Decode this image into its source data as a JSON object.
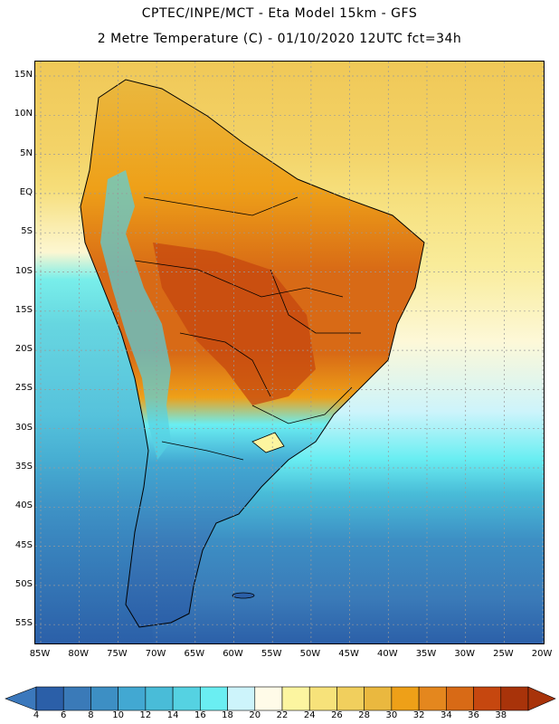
{
  "header": {
    "title_line1": "CPTEC/INPE/MCT -  Eta Model 15km - GFS",
    "title_line2": "2 Metre Temperature (C) - 01/10/2020 12UTC fct=34h"
  },
  "map": {
    "lat_labels": [
      "15N",
      "10N",
      "5N",
      "EQ",
      "5S",
      "10S",
      "15S",
      "20S",
      "25S",
      "30S",
      "35S",
      "40S",
      "45S",
      "50S",
      "55S"
    ],
    "lon_labels": [
      "85W",
      "80W",
      "75W",
      "70W",
      "65W",
      "60W",
      "55W",
      "50W",
      "45W",
      "40W",
      "35W",
      "30W",
      "25W",
      "20W"
    ],
    "gridlines": true
  },
  "colorbar": {
    "labels": [
      "4",
      "6",
      "8",
      "10",
      "12",
      "14",
      "16",
      "18",
      "20",
      "22",
      "24",
      "26",
      "28",
      "30",
      "32",
      "34",
      "36",
      "38"
    ],
    "colors": [
      "#2b5fa8",
      "#3a7ab8",
      "#3d8fc4",
      "#42a8d2",
      "#49bcd8",
      "#55d2e2",
      "#6aeef2",
      "#cdf4fb",
      "#fffbe8",
      "#fcf5a0",
      "#f7e27a",
      "#f1cf5d",
      "#eab83f",
      "#eea018",
      "#e4871e",
      "#d86a16",
      "#c6470f",
      "#a8330a"
    ],
    "under_color": "#3b78bc",
    "over_color": "#a8330a"
  }
}
